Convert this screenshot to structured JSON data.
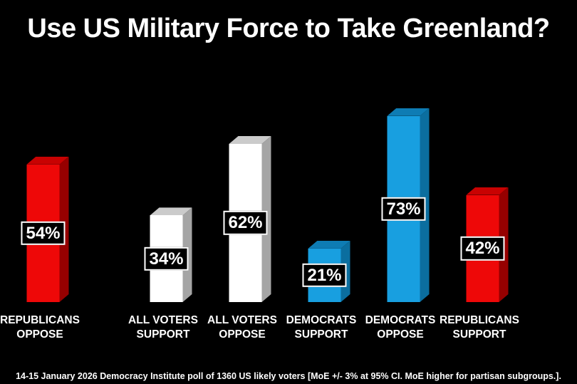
{
  "title": "Use US Military Force to Take Greenland?",
  "footnote": "14-15 January 2026 Democracy Institute poll of 1360 US likely voters [MoE +/- 3% at 95% CI. MoE higher for partisan subgroups.].",
  "chart_data": {
    "type": "bar",
    "style": "3d-column",
    "title": "Use US Military Force to Take Greenland?",
    "background_color": "#000000",
    "text_color": "#ffffff",
    "ylim": [
      0,
      80
    ],
    "grid": false,
    "legend": false,
    "categories": [
      "ALL VOTERS SUPPORT",
      "ALL VOTERS OPPOSE",
      "DEMOCRATS SUPPORT",
      "DEMOCRATS OPPOSE",
      "REPUBLICANS SUPPORT",
      "REPUBLICANS OPPOSE"
    ],
    "values": [
      34,
      62,
      21,
      73,
      42,
      54
    ],
    "bars": [
      {
        "label_line1": "ALL VOTERS",
        "label_line2": "SUPPORT",
        "value": 34,
        "value_label": "34%",
        "color_front": "#ffffff",
        "color_top": "#cbcbcb",
        "color_side": "#a5a5a5"
      },
      {
        "label_line1": "ALL VOTERS",
        "label_line2": "OPPOSE",
        "value": 62,
        "value_label": "62%",
        "color_front": "#ffffff",
        "color_top": "#cbcbcb",
        "color_side": "#a5a5a5"
      },
      {
        "label_line1": "DEMOCRATS",
        "label_line2": "SUPPORT",
        "value": 21,
        "value_label": "21%",
        "color_front": "#189fe0",
        "color_top": "#0e7cb4",
        "color_side": "#0b6e9f"
      },
      {
        "label_line1": "DEMOCRATS",
        "label_line2": "OPPOSE",
        "value": 73,
        "value_label": "73%",
        "color_front": "#189fe0",
        "color_top": "#0e7cb4",
        "color_side": "#0b6e9f"
      },
      {
        "label_line1": "REPUBLICANS",
        "label_line2": "SUPPORT",
        "value": 42,
        "value_label": "42%",
        "color_front": "#ee0808",
        "color_top": "#c80202",
        "color_side": "#960000"
      },
      {
        "label_line1": "REPUBLICANS",
        "label_line2": "OPPOSE",
        "value": 54,
        "value_label": "54%",
        "color_front": "#ee0808",
        "color_top": "#c80202",
        "color_side": "#960000"
      }
    ]
  }
}
